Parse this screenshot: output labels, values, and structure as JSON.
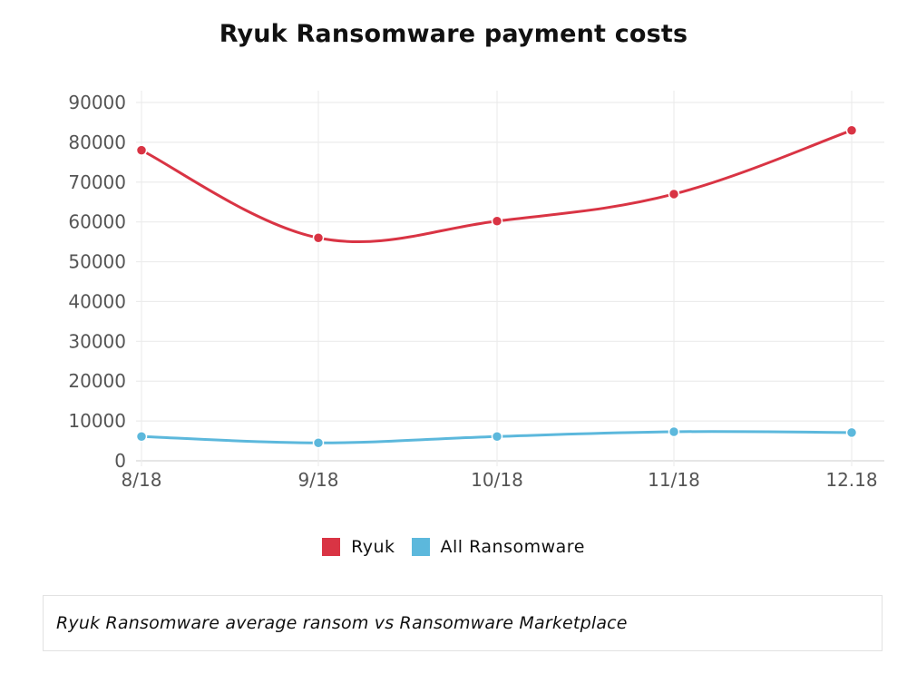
{
  "title": "Ryuk Ransomware payment costs",
  "caption": "Ryuk Ransomware average ransom vs Ransomware Marketplace",
  "legend": [
    {
      "label": "Ryuk",
      "color": "#d93444"
    },
    {
      "label": "All Ransomware",
      "color": "#5cb8dc"
    }
  ],
  "axes": {
    "y_ticks": [
      "0",
      "10000",
      "20000",
      "30000",
      "40000",
      "50000",
      "60000",
      "70000",
      "80000",
      "90000"
    ],
    "x_ticks": [
      "8/18",
      "9/18",
      "10/18",
      "11/18",
      "12.18"
    ]
  },
  "chart_data": {
    "type": "line",
    "title": "Ryuk Ransomware payment costs",
    "xlabel": "",
    "ylabel": "",
    "categories": [
      "8/18",
      "9/18",
      "10/18",
      "11/18",
      "12.18"
    ],
    "series": [
      {
        "name": "Ryuk",
        "color": "#d93444",
        "values": [
          78000,
          56000,
          60200,
          67000,
          83000
        ]
      },
      {
        "name": "All Ransomware",
        "color": "#5cb8dc",
        "values": [
          6100,
          4500,
          6100,
          7300,
          7100
        ]
      }
    ],
    "ylim": [
      0,
      90000
    ],
    "y_tick_step": 10000,
    "grid": true,
    "smooth": true,
    "legend_position": "bottom"
  }
}
